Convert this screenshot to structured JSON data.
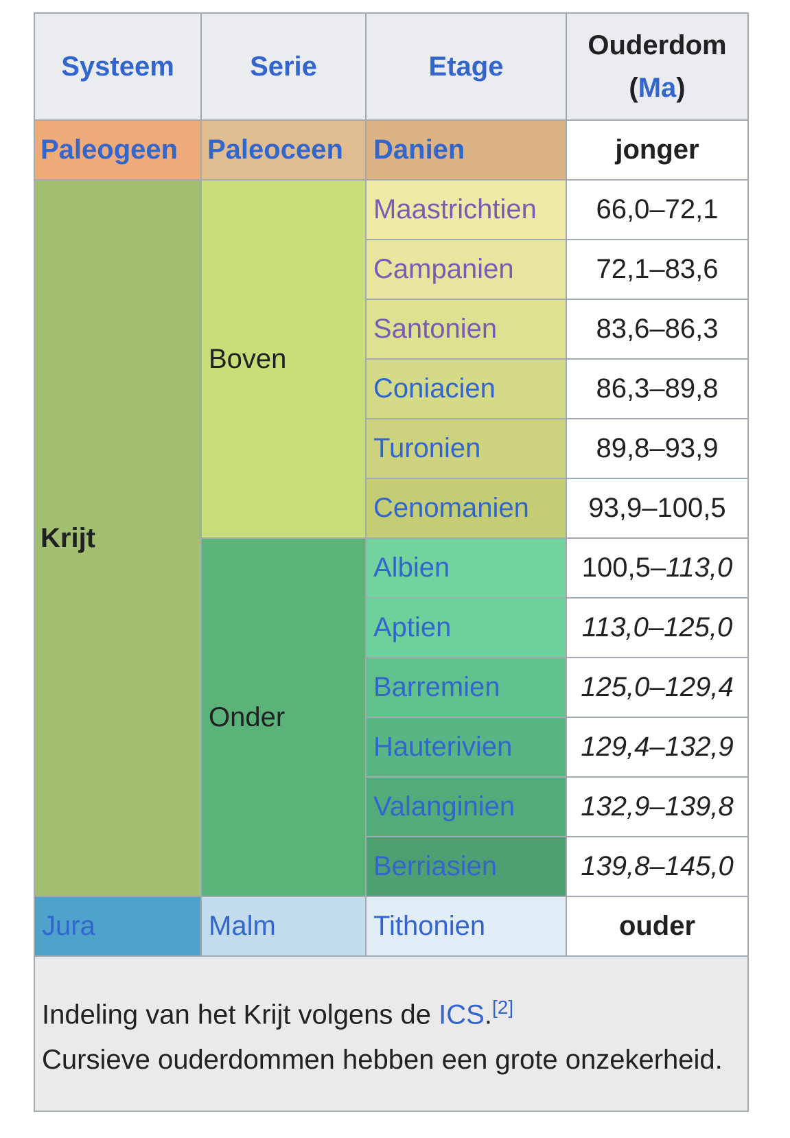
{
  "headers": {
    "system": "Systeem",
    "series": "Serie",
    "stage": "Etage",
    "age": "Ouderdom",
    "age_unit": "Ma"
  },
  "top_row": {
    "system": "Paleogeen",
    "series": "Paleoceen",
    "stage": "Danien",
    "age": "jonger"
  },
  "krijt": {
    "system": "Krijt",
    "upper": "Boven",
    "lower": "Onder"
  },
  "stages": [
    {
      "name": "Maastrichtien",
      "age_a": "66,0",
      "age_b": "72,1",
      "color": "#f0eaa9",
      "visited": true
    },
    {
      "name": "Campanien",
      "age_a": "72,1",
      "age_b": "83,6",
      "color": "#e8e59e",
      "visited": true
    },
    {
      "name": "Santonien",
      "age_a": "83,6",
      "age_b": "86,3",
      "color": "#dfe192",
      "visited": true
    },
    {
      "name": "Coniacien",
      "age_a": "86,3",
      "age_b": "89,8",
      "color": "#d5da88"
    },
    {
      "name": "Turonien",
      "age_a": "89,8",
      "age_b": "93,9",
      "color": "#ccd27d"
    },
    {
      "name": "Cenomanien",
      "age_a": "93,9",
      "age_b": "100,5",
      "color": "#c4cd73"
    },
    {
      "name": "Albien",
      "age_a": "100,5",
      "age_b": "113,0",
      "color": "#72d39e",
      "italic_b": true
    },
    {
      "name": "Aptien",
      "age_a": "113,0",
      "age_b": "125,0",
      "color": "#6ed09b",
      "italic_a": true,
      "italic_b": true
    },
    {
      "name": "Barremien",
      "age_a": "125,0",
      "age_b": "129,4",
      "color": "#60c18d",
      "italic_a": true,
      "italic_b": true
    },
    {
      "name": "Hauterivien",
      "age_a": "129,4",
      "age_b": "132,9",
      "color": "#58b685",
      "italic_a": true,
      "italic_b": true
    },
    {
      "name": "Valanginien",
      "age_a": "132,9",
      "age_b": "139,8",
      "color": "#52ab7b",
      "italic_a": true,
      "italic_b": true
    },
    {
      "name": "Berriasien",
      "age_a": "139,8",
      "age_b": "145,0",
      "color": "#4e9f72",
      "italic_a": true,
      "italic_b": true
    }
  ],
  "bottom_row": {
    "system": "Jura",
    "series": "Malm",
    "stage": "Tithonien",
    "age": "ouder"
  },
  "caption": {
    "text1": "Indeling van het Krijt volgens de ",
    "link": "ICS",
    "dot": ".",
    "ref": "[2]",
    "text2": "Cursieve ouderdommen hebben een grote onzekerheid."
  },
  "colors": {
    "header": "#eaecf0",
    "paleogeen": "#f0ab7a",
    "paleoceen": "#dfbd90",
    "danien": "#dbb385",
    "krijt": "#a2bf72",
    "boven": "#c9dd79",
    "onder": "#5bb37a",
    "jura": "#4ea3cc",
    "malm": "#c2dcee",
    "tithonien": "#e0ecf6",
    "link": "#3366cc",
    "visited": "#795cb2"
  }
}
